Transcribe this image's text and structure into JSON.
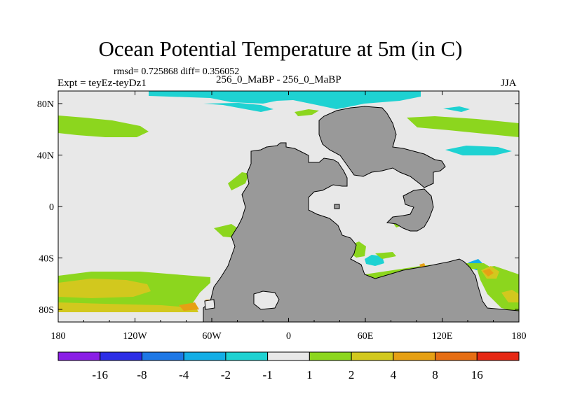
{
  "title": "Ocean Potential Temperature at 5m (in C)",
  "stats": "rmsd= 0.725868 diff= 0.356052",
  "experiment": "Expt = teyEz-teyDz1",
  "case": "256_0_MaBP - 256_0_MaBP",
  "season": "JJA",
  "y_ticks": [
    "80N",
    "40N",
    "0",
    "40S",
    "80S"
  ],
  "x_ticks": [
    "180",
    "120W",
    "60W",
    "0",
    "60E",
    "120E",
    "180"
  ],
  "colorbar": {
    "labels": [
      "-16",
      "-8",
      "-4",
      "-2",
      "-1",
      "1",
      "2",
      "4",
      "8",
      "16"
    ],
    "colors": [
      "#8a1ee6",
      "#2c2ee6",
      "#1e78e6",
      "#14aee6",
      "#1ed2d2",
      "#e8e8e8",
      "#8cd61e",
      "#d2c81e",
      "#e6a014",
      "#e66e14",
      "#e62814"
    ]
  },
  "colors": {
    "land": "#999999",
    "ocean_neutral": "#e8e8e8",
    "plus_1_2": "#8cd61e",
    "plus_2_4": "#d2c81e",
    "plus_4_8": "#e6a014",
    "plus_8_16": "#e66e14",
    "minus_1_2": "#1ed2d2",
    "minus_2_4": "#14aee6"
  }
}
